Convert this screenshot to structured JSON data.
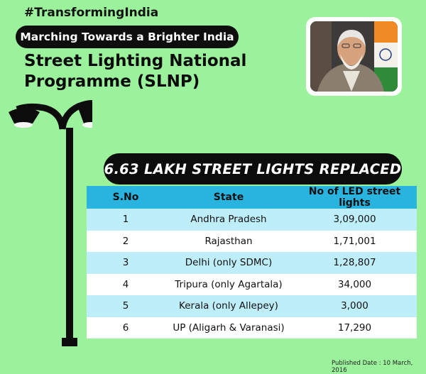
{
  "hashtag": "#TransformingIndia",
  "subtitle": "Marching Towards a Brighter India",
  "title_line1": "Street Lighting National",
  "title_line2": "Programme (SLNP)",
  "banner": "6.63 LAKH STREET LIGHTS REPLACED",
  "table": {
    "headers": [
      "S.No",
      "State",
      "No of LED street lights"
    ],
    "rows": [
      [
        "1",
        "Andhra Pradesh",
        "3,09,000"
      ],
      [
        "2",
        "Rajasthan",
        "1,71,001"
      ],
      [
        "3",
        "Delhi (only SDMC)",
        "1,28,807"
      ],
      [
        "4",
        "Tripura (only Agartala)",
        "34,000"
      ],
      [
        "5",
        "Kerala (only Allepey)",
        "3,000"
      ],
      [
        "6",
        "UP (Aligarh & Varanasi)",
        "17,290"
      ]
    ]
  },
  "published": "Published Date : 10 March, 2016",
  "colors": {
    "background": "#9cf29c",
    "header": "#29b3df",
    "row_alt": "#bfeefb",
    "pill": "#0c0c0c"
  }
}
